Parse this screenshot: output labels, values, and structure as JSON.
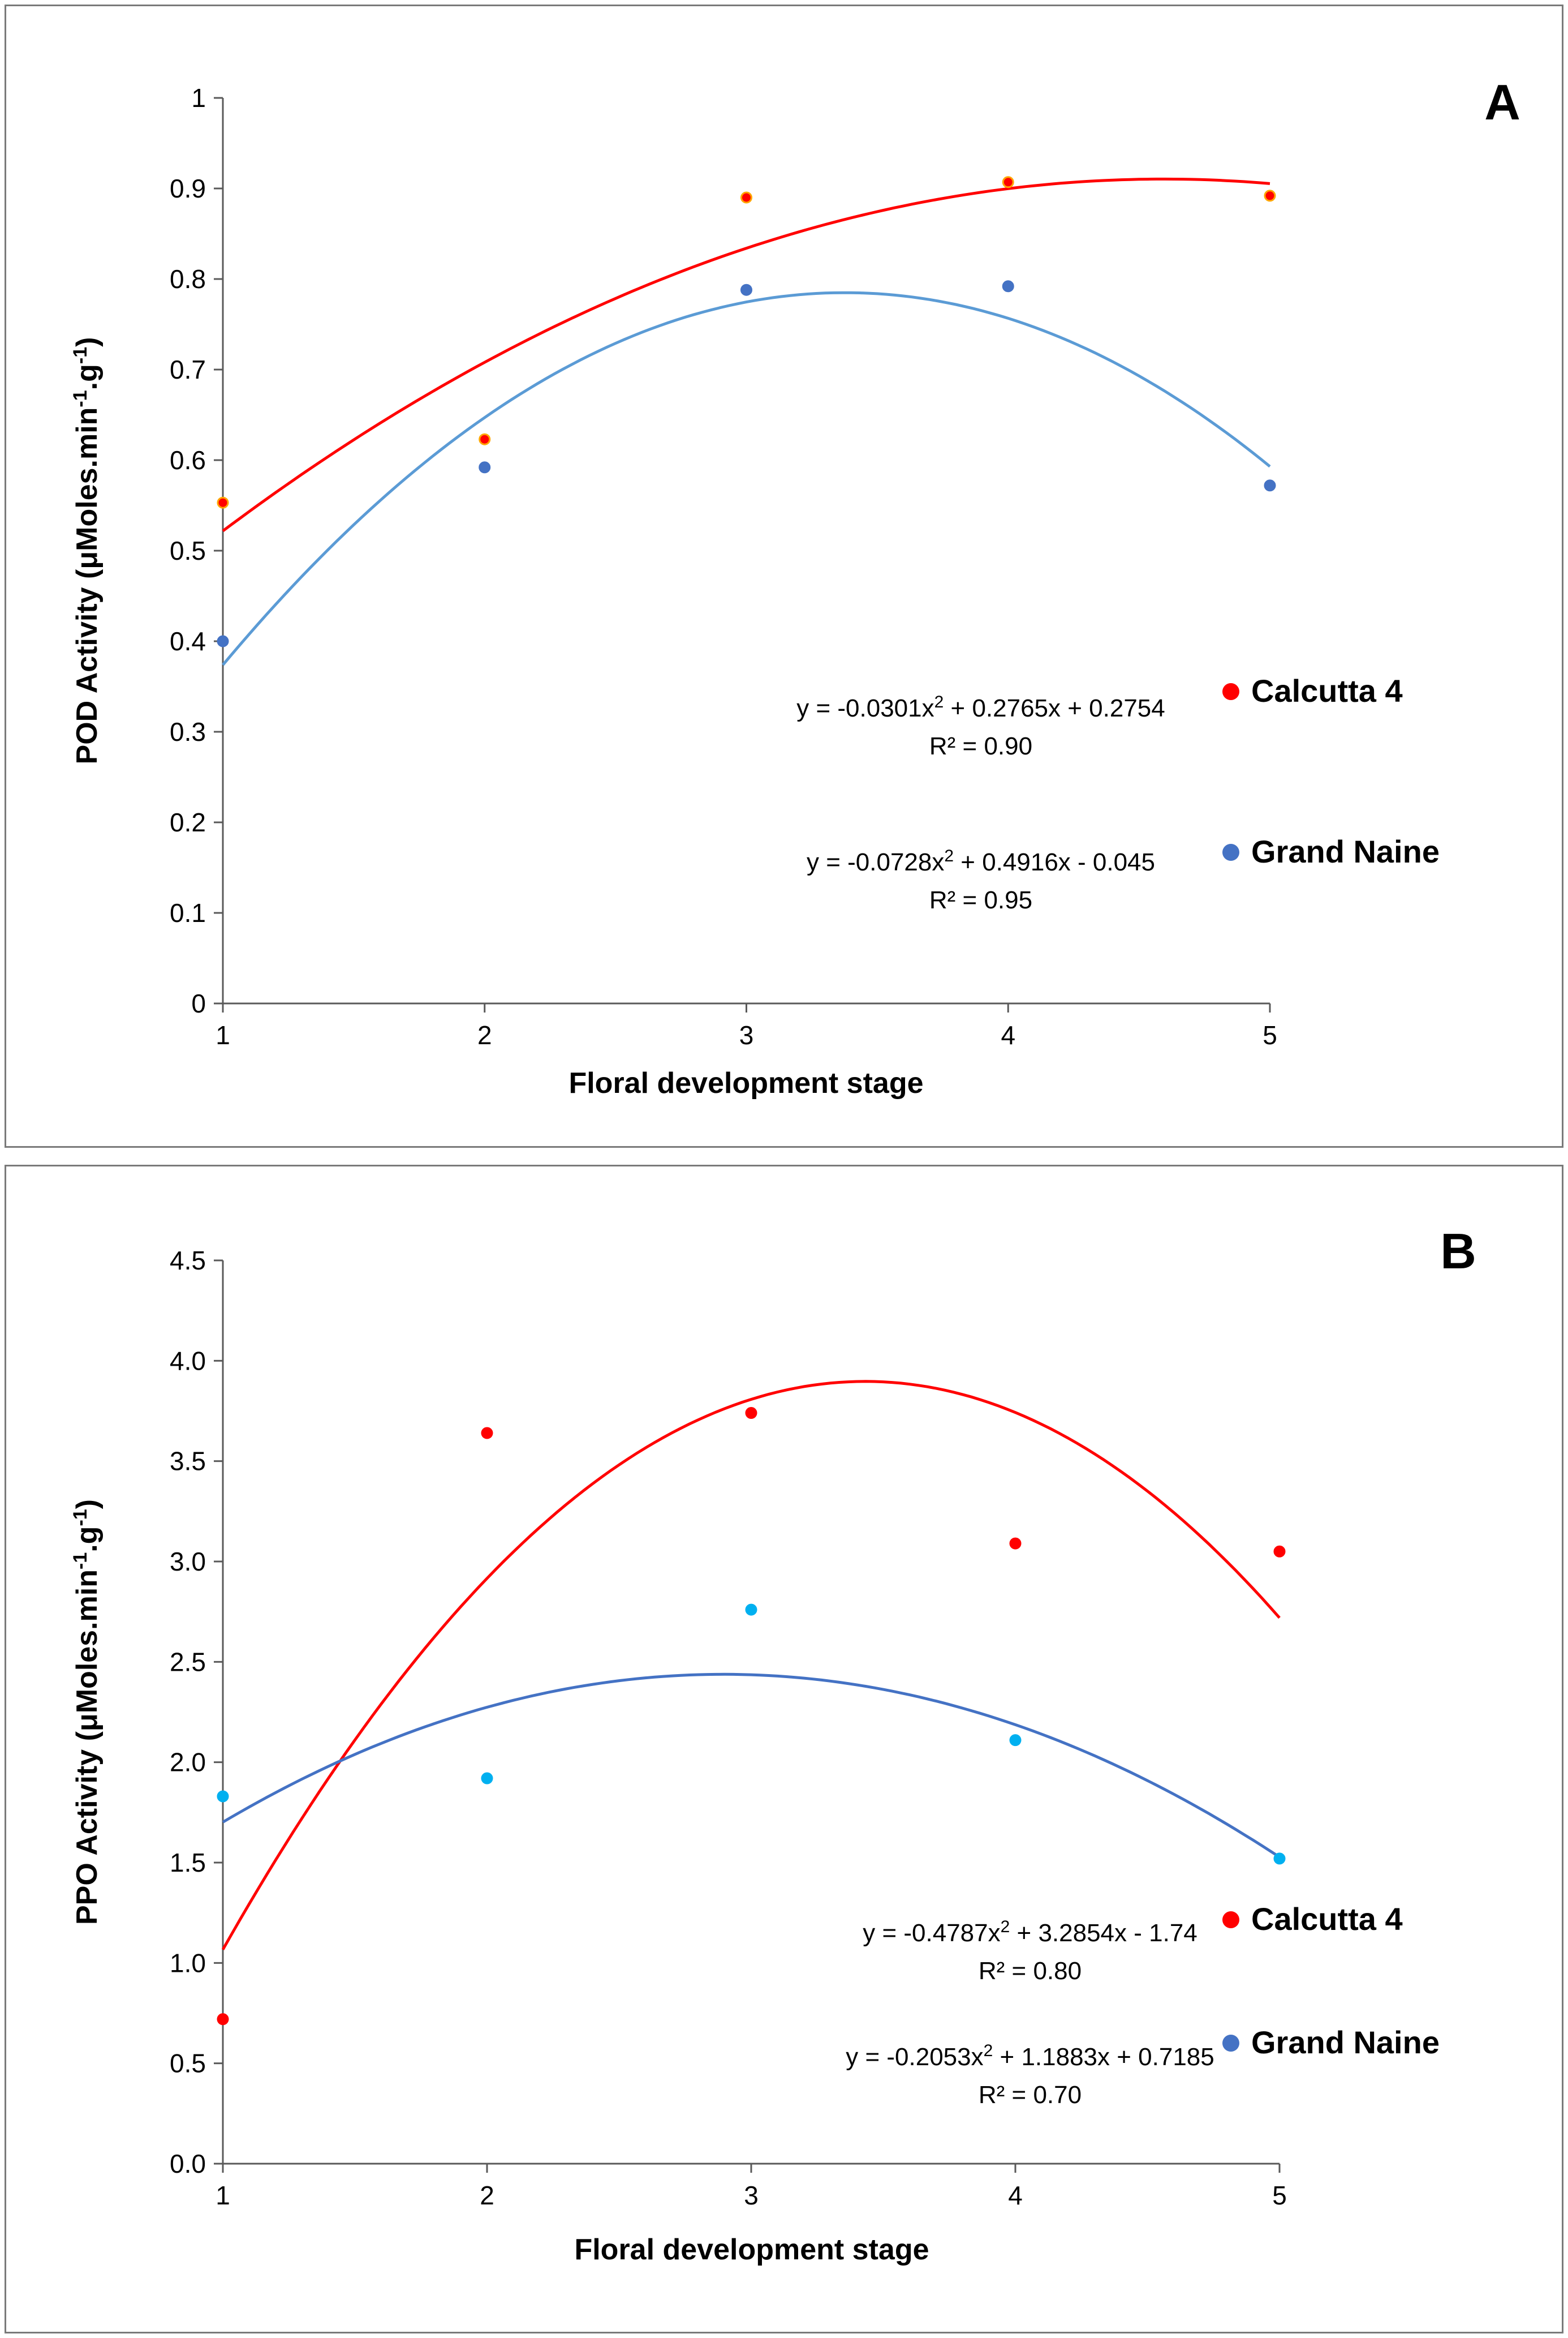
{
  "chart_data": [
    {
      "type": "scatter",
      "panel_label": "A",
      "xlabel": "Floral development stage",
      "ylabel_main": "POD Activity (μMoles.min",
      "ylabel_sup1": "-1",
      "ylabel_mid": ".g",
      "ylabel_sup2": "-1",
      "ylabel_end": ")",
      "xlim": [
        1,
        5
      ],
      "ylim": [
        0,
        1
      ],
      "x_ticks": [
        "1",
        "2",
        "3",
        "4",
        "5"
      ],
      "y_ticks": [
        "0",
        "0.1",
        "0.2",
        "0.3",
        "0.4",
        "0.5",
        "0.6",
        "0.7",
        "0.8",
        "0.9",
        "1"
      ],
      "y_tick_values": [
        0,
        0.1,
        0.2,
        0.3,
        0.4,
        0.5,
        0.6,
        0.7,
        0.8,
        0.9,
        1
      ],
      "series": [
        {
          "name": "Calcutta 4",
          "color": "#ff0000",
          "marker_color": "#ff0000",
          "marker_edge": "#ffa500",
          "x": [
            1,
            2,
            3,
            4,
            5
          ],
          "y": [
            0.553,
            0.623,
            0.89,
            0.907,
            0.892
          ],
          "fit": [
            -0.0301,
            0.2765,
            0.2754
          ],
          "eq_a": "y = -0.0301x",
          "eq_sup": "2",
          "eq_b": " + 0.2765x + 0.2754",
          "r2": "R² = 0.90"
        },
        {
          "name": "Grand Naine",
          "color": "#5b9bd5",
          "marker_color": "#4472c4",
          "marker_edge": "#4472c4",
          "x": [
            1,
            2,
            3,
            4,
            5
          ],
          "y": [
            0.4,
            0.592,
            0.788,
            0.792,
            0.572
          ],
          "fit": [
            -0.0728,
            0.4916,
            -0.045
          ],
          "eq_a": "y = -0.0728x",
          "eq_sup": "2",
          "eq_b": " + 0.4916x - 0.045",
          "r2": "R² = 0.95"
        }
      ]
    },
    {
      "type": "scatter",
      "panel_label": "B",
      "xlabel": "Floral development stage",
      "ylabel_main": "PPO Activity (μMoles.min",
      "ylabel_sup1": "-1",
      "ylabel_mid": ".g",
      "ylabel_sup2": "-1",
      "ylabel_end": ")",
      "xlim": [
        1,
        5
      ],
      "ylim": [
        0,
        4.5
      ],
      "x_ticks": [
        "1",
        "2",
        "3",
        "4",
        "5"
      ],
      "y_ticks": [
        "0.0",
        "0.5",
        "1.0",
        "1.5",
        "2.0",
        "2.5",
        "3.0",
        "3.5",
        "4.0",
        "4.5"
      ],
      "y_tick_values": [
        0,
        0.5,
        1.0,
        1.5,
        2.0,
        2.5,
        3.0,
        3.5,
        4.0,
        4.5
      ],
      "series": [
        {
          "name": "Calcutta 4",
          "color": "#ff0000",
          "marker_color": "#ff0000",
          "marker_edge": "#ff0000",
          "x": [
            1,
            2,
            3,
            4,
            5
          ],
          "y": [
            0.72,
            3.64,
            3.74,
            3.09,
            3.05
          ],
          "fit": [
            -0.4787,
            3.2854,
            -1.74
          ],
          "eq_a": "y = -0.4787x",
          "eq_sup": "2",
          "eq_b": " + 3.2854x - 1.74",
          "r2": "R² = 0.80"
        },
        {
          "name": "Grand Naine",
          "color": "#4472c4",
          "marker_color": "#00b0f0",
          "marker_edge": "#00b0f0",
          "legend_color": "#4472c4",
          "x": [
            1,
            2,
            3,
            4,
            5
          ],
          "y": [
            1.83,
            1.92,
            2.76,
            2.11,
            1.52
          ],
          "fit": [
            -0.2053,
            1.1883,
            0.7185
          ],
          "eq_a": "y = -0.2053x",
          "eq_sup": "2",
          "eq_b": " + 1.1883x + 0.7185",
          "r2": "R² = 0.70"
        }
      ]
    }
  ]
}
